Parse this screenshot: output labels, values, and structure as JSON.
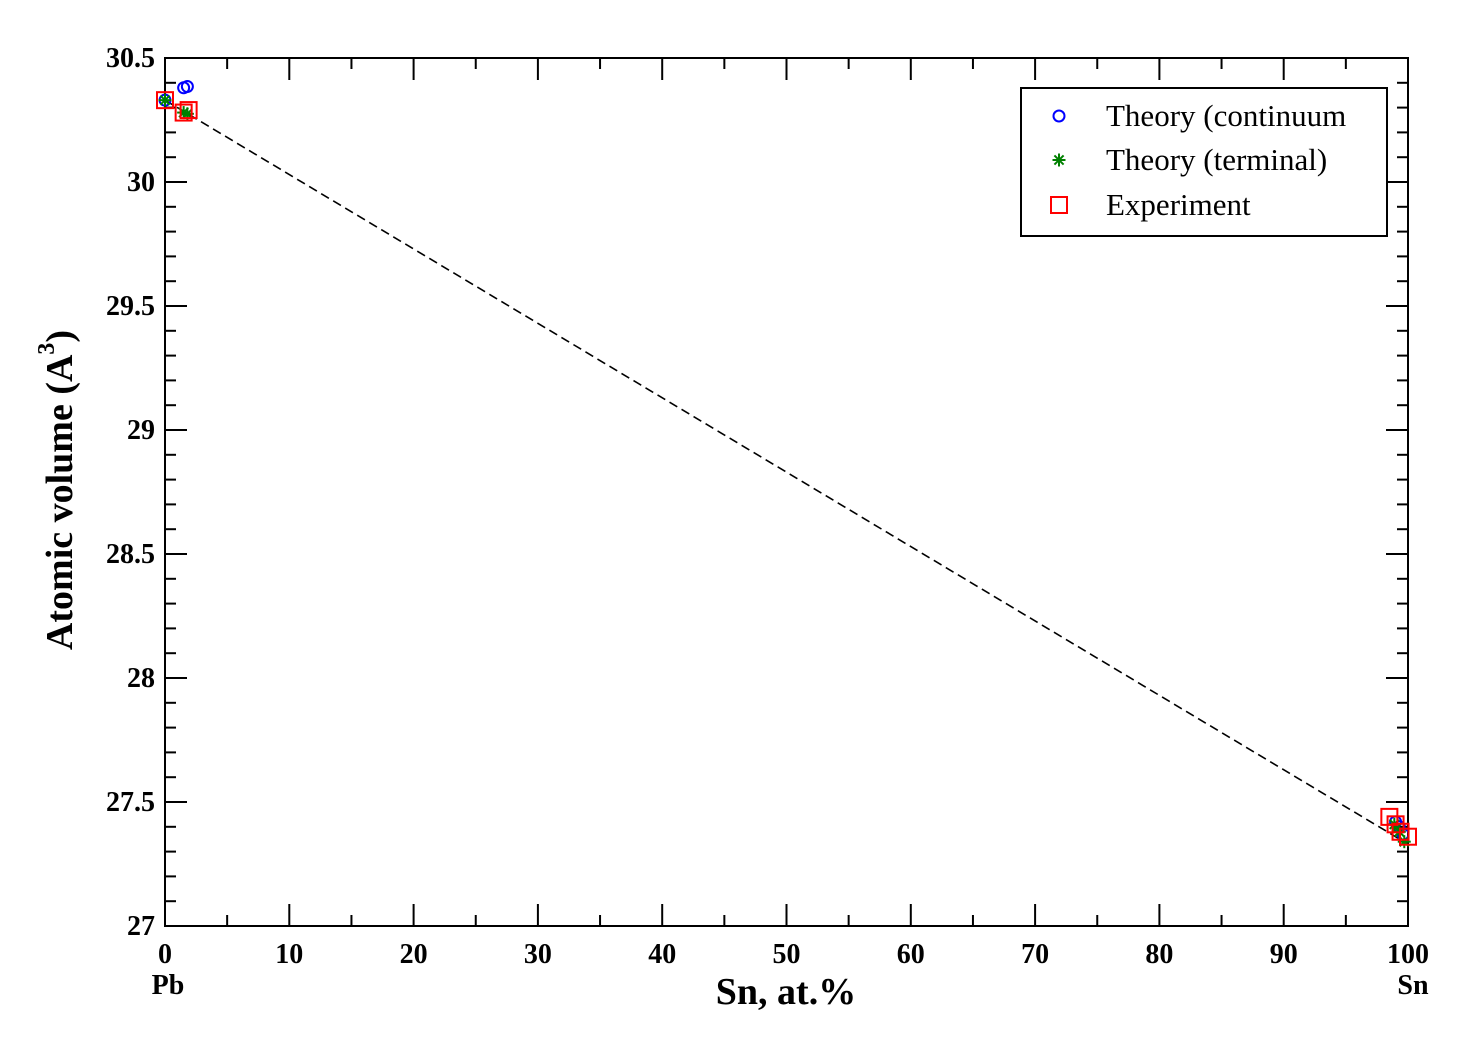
{
  "chart_data": {
    "type": "scatter",
    "xlabel": "Sn, at.%",
    "ylabel": "Atomic volume (A",
    "ylabel_superscript": "3",
    "ylabel_close": ")",
    "xlim": [
      0,
      100
    ],
    "ylim": [
      27,
      30.5
    ],
    "xticks": [
      "0",
      "10",
      "20",
      "30",
      "40",
      "50",
      "60",
      "70",
      "80",
      "90",
      "100"
    ],
    "yticks": [
      "27",
      "27.5",
      "28",
      "28.5",
      "29",
      "29.5",
      "30",
      "30.5"
    ],
    "x_end_labels": {
      "left": "Pb",
      "right": "Sn"
    },
    "grid": false,
    "legend_position": "top-right",
    "series": [
      {
        "name": "Theory (continuum",
        "marker": "circle",
        "color": "#0000ff",
        "points": [
          [
            0,
            30.33
          ],
          [
            1.5,
            30.38
          ],
          [
            1.8,
            30.385
          ],
          [
            99.0,
            27.42
          ],
          [
            99.3,
            27.4
          ],
          [
            99.6,
            27.37
          ]
        ]
      },
      {
        "name": "Theory (terminal)",
        "marker": "star",
        "color": "#008000",
        "points": [
          [
            0,
            30.33
          ],
          [
            1.5,
            30.28
          ],
          [
            1.8,
            30.275
          ],
          [
            98.9,
            27.41
          ],
          [
            99.3,
            27.38
          ],
          [
            99.7,
            27.34
          ]
        ]
      },
      {
        "name": "Experiment",
        "marker": "square",
        "color": "#ff0000",
        "points": [
          [
            0,
            30.33
          ],
          [
            1.5,
            30.28
          ],
          [
            1.9,
            30.29
          ],
          [
            98.5,
            27.44
          ],
          [
            99.0,
            27.41
          ],
          [
            99.4,
            27.38
          ],
          [
            100,
            27.36
          ]
        ]
      }
    ],
    "fit_line": {
      "style": "dashed",
      "color": "#000000",
      "points": [
        [
          0,
          30.33
        ],
        [
          100,
          27.33
        ]
      ]
    }
  }
}
